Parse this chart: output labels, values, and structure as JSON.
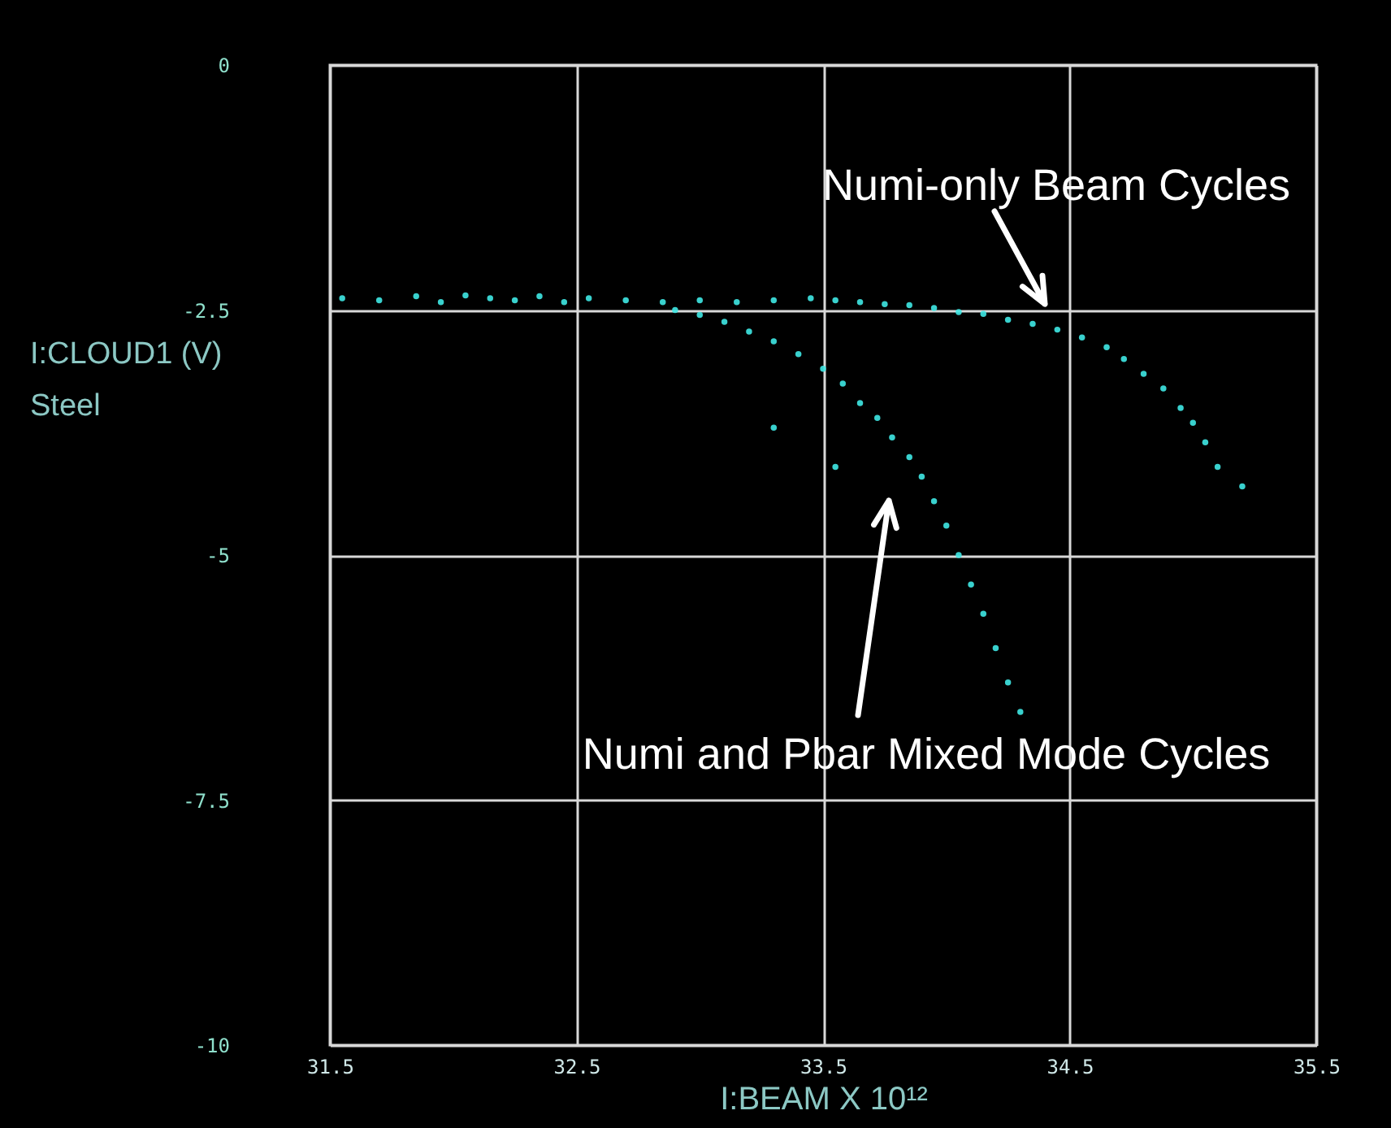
{
  "chart_data": {
    "type": "scatter",
    "xlabel": "I:BEAM  X 10¹²",
    "ylabel": "I:CLOUD1  (V)\nSteel",
    "xlim": [
      31.5,
      35.5
    ],
    "xticks": [
      31.5,
      32.5,
      33.5,
      34.5,
      35.5
    ],
    "ylim": [
      -10,
      0
    ],
    "yticks": [
      0,
      -2.5,
      -5,
      -7.5,
      -10
    ],
    "grid": true,
    "marker": "circle",
    "series": [
      {
        "color": "#3fe8e4",
        "x": [
          31.55,
          31.7,
          31.85,
          31.95,
          32.05,
          32.15,
          32.25,
          32.35,
          32.45,
          32.55,
          32.7,
          32.85,
          33.0,
          33.15,
          33.3,
          33.45,
          33.55,
          33.65,
          33.75,
          33.85,
          33.95,
          34.05,
          34.15,
          34.25,
          34.35,
          34.45,
          34.55,
          34.65,
          34.72,
          34.8,
          34.88,
          34.95,
          35.0,
          35.05,
          35.1,
          35.2
        ],
        "values": [
          -2.38,
          -2.4,
          -2.36,
          -2.42,
          -2.35,
          -2.38,
          -2.4,
          -2.36,
          -2.42,
          -2.38,
          -2.4,
          -2.42,
          -2.4,
          -2.42,
          -2.4,
          -2.38,
          -2.4,
          -2.42,
          -2.44,
          -2.45,
          -2.48,
          -2.52,
          -2.54,
          -2.6,
          -2.64,
          -2.7,
          -2.78,
          -2.88,
          -3.0,
          -3.15,
          -3.3,
          -3.5,
          -3.65,
          -3.85,
          -4.1,
          -4.3
        ]
      },
      {
        "color": "#3fe8e4",
        "x": [
          32.9,
          33.0,
          33.1,
          33.2,
          33.3,
          33.4,
          33.5,
          33.58,
          33.65,
          33.72,
          33.78,
          33.85,
          33.9,
          33.95,
          34.0,
          34.05,
          34.1,
          34.15,
          34.2,
          34.25,
          34.3,
          33.3,
          33.55
        ],
        "values": [
          -2.5,
          -2.55,
          -2.62,
          -2.72,
          -2.82,
          -2.95,
          -3.1,
          -3.25,
          -3.45,
          -3.6,
          -3.8,
          -4.0,
          -4.2,
          -4.45,
          -4.7,
          -5.0,
          -5.3,
          -5.6,
          -5.95,
          -6.3,
          -6.6,
          -3.7,
          -4.1
        ]
      }
    ],
    "annotations": [
      "Numi-only Beam Cycles",
      "Numi and Pbar Mixed Mode Cycles"
    ]
  }
}
